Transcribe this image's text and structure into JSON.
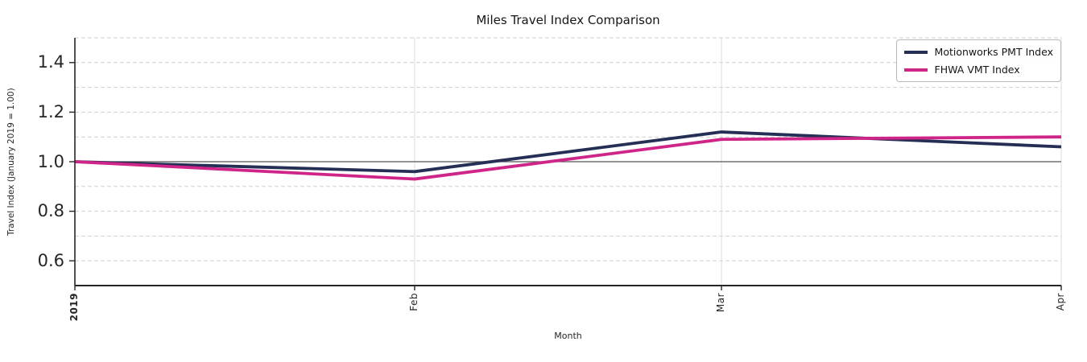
{
  "chart_data": {
    "type": "line",
    "title": "Miles Travel Index Comparison",
    "xlabel": "Month",
    "ylabel": "Travel Index (January 2019 = 1.00)",
    "categories": [
      "2019",
      "Feb",
      "Mar",
      "Apr"
    ],
    "x_day_offsets": [
      0,
      31,
      59,
      90
    ],
    "x_total_days": 90,
    "series": [
      {
        "name": "Motionworks PMT Index",
        "color": "#252e54",
        "values": [
          1.0,
          0.96,
          1.12,
          1.06
        ]
      },
      {
        "name": "FHWA VMT Index",
        "color": "#cf2589",
        "values": [
          1.0,
          0.93,
          1.09,
          1.1
        ]
      }
    ],
    "ylim": [
      0.5,
      1.5
    ],
    "yticks": [
      1.4,
      1.2,
      1.0,
      0.8,
      0.6
    ],
    "ytick_labels": [
      "1.4",
      "1.2",
      "1.0",
      "0.8",
      "0.6"
    ],
    "minor_grid_step": 0.1,
    "reference_line": 1.0,
    "reference_line_color": "#555555",
    "grid_color": "#cfcfcf",
    "legend_position": "upper right",
    "grid": true
  }
}
